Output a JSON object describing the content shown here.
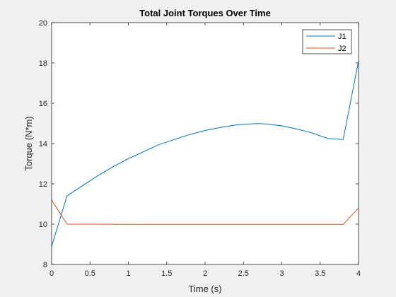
{
  "chart_data": {
    "type": "line",
    "title": "Total Joint Torques Over Time",
    "xlabel": "Time (s)",
    "ylabel": "Torque (N*m)",
    "xlim": [
      0,
      4
    ],
    "ylim": [
      8,
      20
    ],
    "xticks": [
      0,
      0.5,
      1,
      1.5,
      2,
      2.5,
      3,
      3.5,
      4
    ],
    "xtick_labels": [
      "0",
      "0.5",
      "1",
      "1.5",
      "2",
      "2.5",
      "3",
      "3.5",
      "4"
    ],
    "yticks": [
      8,
      10,
      12,
      14,
      16,
      18,
      20
    ],
    "ytick_labels": [
      "8",
      "10",
      "12",
      "14",
      "16",
      "18",
      "20"
    ],
    "grid": false,
    "legend_position": "top-right",
    "series": [
      {
        "name": "J1",
        "color": "#0072BD",
        "x": [
          0,
          0.2,
          0.4,
          0.6,
          0.8,
          1.0,
          1.2,
          1.4,
          1.6,
          1.8,
          2.0,
          2.2,
          2.4,
          2.6,
          2.7,
          2.8,
          3.0,
          3.2,
          3.4,
          3.6,
          3.8,
          4.0
        ],
        "y": [
          8.9,
          11.4,
          11.9,
          12.4,
          12.85,
          13.25,
          13.6,
          13.95,
          14.2,
          14.45,
          14.65,
          14.8,
          14.92,
          14.98,
          14.99,
          14.97,
          14.88,
          14.72,
          14.52,
          14.25,
          14.2,
          18.1
        ]
      },
      {
        "name": "J2",
        "color": "#D95319",
        "x": [
          0,
          0.2,
          0.5,
          1.0,
          1.5,
          2.0,
          2.5,
          3.0,
          3.5,
          3.8,
          4.0
        ],
        "y": [
          11.2,
          10.0,
          10.0,
          9.99,
          9.99,
          9.99,
          9.99,
          9.99,
          9.99,
          9.99,
          10.8
        ]
      }
    ]
  }
}
